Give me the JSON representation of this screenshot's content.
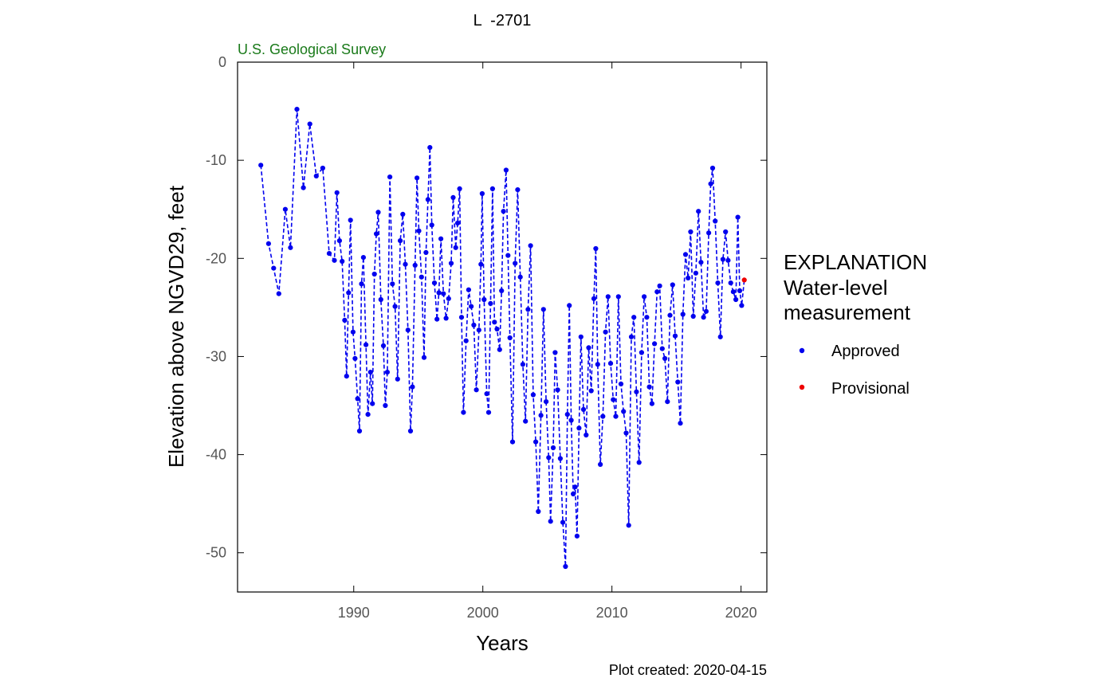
{
  "chart_data": {
    "type": "line",
    "title": "L  -2701",
    "agency": "U.S. Geological Survey",
    "xlabel": "Years",
    "ylabel": "Elevation above NGVD29, feet",
    "footer": "Plot created: 2020-04-15",
    "xlim": [
      1981,
      2022
    ],
    "ylim": [
      -54,
      0
    ],
    "xticks": [
      1990,
      2000,
      2010,
      2020
    ],
    "yticks": [
      0,
      -10,
      -20,
      -30,
      -40,
      -50
    ],
    "grid": false,
    "legend": {
      "placement": "right",
      "heading_lines": [
        "EXPLANATION",
        "Water-level",
        "measurement"
      ],
      "entries": [
        {
          "label": "Approved",
          "color": "#0000ee"
        },
        {
          "label": "Provisional",
          "color": "#ee0000"
        }
      ]
    },
    "series": [
      {
        "name": "Approved",
        "color": "#0000ee",
        "line_style": "dashed",
        "points": [
          [
            1982.8,
            -10.5
          ],
          [
            1983.4,
            -18.5
          ],
          [
            1983.8,
            -21.0
          ],
          [
            1984.2,
            -23.6
          ],
          [
            1984.7,
            -15.0
          ],
          [
            1985.1,
            -18.9
          ],
          [
            1985.6,
            -4.8
          ],
          [
            1986.1,
            -12.8
          ],
          [
            1986.6,
            -6.3
          ],
          [
            1987.1,
            -11.6
          ],
          [
            1987.6,
            -10.8
          ],
          [
            1988.1,
            -19.5
          ],
          [
            1988.5,
            -20.2
          ],
          [
            1988.7,
            -13.3
          ],
          [
            1988.9,
            -18.2
          ],
          [
            1989.1,
            -20.3
          ],
          [
            1989.3,
            -26.3
          ],
          [
            1989.45,
            -32.0
          ],
          [
            1989.6,
            -23.5
          ],
          [
            1989.75,
            -16.1
          ],
          [
            1989.95,
            -27.5
          ],
          [
            1990.1,
            -30.2
          ],
          [
            1990.3,
            -34.3
          ],
          [
            1990.45,
            -37.6
          ],
          [
            1990.6,
            -22.6
          ],
          [
            1990.75,
            -19.9
          ],
          [
            1990.95,
            -28.8
          ],
          [
            1991.1,
            -35.9
          ],
          [
            1991.3,
            -31.6
          ],
          [
            1991.45,
            -34.8
          ],
          [
            1991.6,
            -21.6
          ],
          [
            1991.75,
            -17.5
          ],
          [
            1991.9,
            -15.3
          ],
          [
            1992.1,
            -24.2
          ],
          [
            1992.3,
            -28.9
          ],
          [
            1992.45,
            -35.0
          ],
          [
            1992.6,
            -31.6
          ],
          [
            1992.8,
            -11.7
          ],
          [
            1993.0,
            -22.6
          ],
          [
            1993.2,
            -24.9
          ],
          [
            1993.4,
            -32.3
          ],
          [
            1993.6,
            -18.2
          ],
          [
            1993.8,
            -15.5
          ],
          [
            1994.0,
            -20.6
          ],
          [
            1994.2,
            -27.3
          ],
          [
            1994.4,
            -37.6
          ],
          [
            1994.55,
            -33.1
          ],
          [
            1994.75,
            -20.7
          ],
          [
            1994.9,
            -11.8
          ],
          [
            1995.05,
            -17.2
          ],
          [
            1995.25,
            -21.9
          ],
          [
            1995.45,
            -30.1
          ],
          [
            1995.6,
            -19.4
          ],
          [
            1995.75,
            -14.0
          ],
          [
            1995.9,
            -8.7
          ],
          [
            1996.05,
            -16.6
          ],
          [
            1996.25,
            -22.5
          ],
          [
            1996.45,
            -26.2
          ],
          [
            1996.6,
            -23.5
          ],
          [
            1996.75,
            -18.0
          ],
          [
            1996.95,
            -23.6
          ],
          [
            1997.15,
            -26.1
          ],
          [
            1997.35,
            -24.1
          ],
          [
            1997.55,
            -20.5
          ],
          [
            1997.7,
            -13.8
          ],
          [
            1997.9,
            -18.9
          ],
          [
            1998.05,
            -16.4
          ],
          [
            1998.2,
            -12.9
          ],
          [
            1998.35,
            -26.0
          ],
          [
            1998.5,
            -35.7
          ],
          [
            1998.7,
            -28.4
          ],
          [
            1998.9,
            -23.2
          ],
          [
            1999.1,
            -24.9
          ],
          [
            1999.3,
            -26.8
          ],
          [
            1999.5,
            -33.4
          ],
          [
            1999.7,
            -27.3
          ],
          [
            1999.85,
            -20.6
          ],
          [
            1999.95,
            -13.4
          ],
          [
            2000.1,
            -24.2
          ],
          [
            2000.3,
            -33.8
          ],
          [
            2000.45,
            -35.7
          ],
          [
            2000.6,
            -24.6
          ],
          [
            2000.75,
            -12.9
          ],
          [
            2000.9,
            -26.5
          ],
          [
            2001.1,
            -27.2
          ],
          [
            2001.3,
            -29.3
          ],
          [
            2001.45,
            -23.3
          ],
          [
            2001.6,
            -15.2
          ],
          [
            2001.8,
            -11.0
          ],
          [
            2001.95,
            -19.7
          ],
          [
            2002.1,
            -28.1
          ],
          [
            2002.3,
            -38.7
          ],
          [
            2002.5,
            -20.5
          ],
          [
            2002.7,
            -13.0
          ],
          [
            2002.9,
            -21.9
          ],
          [
            2003.1,
            -30.8
          ],
          [
            2003.3,
            -36.6
          ],
          [
            2003.5,
            -25.2
          ],
          [
            2003.7,
            -18.7
          ],
          [
            2003.9,
            -33.9
          ],
          [
            2004.1,
            -38.7
          ],
          [
            2004.3,
            -45.8
          ],
          [
            2004.5,
            -36.0
          ],
          [
            2004.7,
            -25.2
          ],
          [
            2004.9,
            -34.6
          ],
          [
            2005.1,
            -40.3
          ],
          [
            2005.25,
            -46.8
          ],
          [
            2005.45,
            -39.3
          ],
          [
            2005.6,
            -29.6
          ],
          [
            2005.8,
            -33.4
          ],
          [
            2006.0,
            -40.4
          ],
          [
            2006.2,
            -46.9
          ],
          [
            2006.4,
            -51.4
          ],
          [
            2006.55,
            -35.9
          ],
          [
            2006.7,
            -24.8
          ],
          [
            2006.85,
            -36.5
          ],
          [
            2007.0,
            -44.0
          ],
          [
            2007.15,
            -43.3
          ],
          [
            2007.3,
            -48.3
          ],
          [
            2007.45,
            -37.3
          ],
          [
            2007.6,
            -28.0
          ],
          [
            2007.8,
            -35.4
          ],
          [
            2008.0,
            -38.0
          ],
          [
            2008.2,
            -29.1
          ],
          [
            2008.4,
            -33.5
          ],
          [
            2008.6,
            -24.1
          ],
          [
            2008.75,
            -19.0
          ],
          [
            2008.9,
            -30.8
          ],
          [
            2009.1,
            -41.0
          ],
          [
            2009.3,
            -36.1
          ],
          [
            2009.5,
            -27.5
          ],
          [
            2009.7,
            -23.9
          ],
          [
            2009.9,
            -30.7
          ],
          [
            2010.1,
            -34.4
          ],
          [
            2010.3,
            -36.1
          ],
          [
            2010.5,
            -23.9
          ],
          [
            2010.7,
            -32.8
          ],
          [
            2010.9,
            -35.6
          ],
          [
            2011.1,
            -37.8
          ],
          [
            2011.3,
            -47.2
          ],
          [
            2011.5,
            -28.0
          ],
          [
            2011.7,
            -26.0
          ],
          [
            2011.9,
            -33.6
          ],
          [
            2012.1,
            -40.8
          ],
          [
            2012.3,
            -29.6
          ],
          [
            2012.5,
            -23.9
          ],
          [
            2012.7,
            -26.0
          ],
          [
            2012.9,
            -33.1
          ],
          [
            2013.1,
            -34.8
          ],
          [
            2013.3,
            -28.7
          ],
          [
            2013.5,
            -23.4
          ],
          [
            2013.7,
            -22.8
          ],
          [
            2013.9,
            -29.2
          ],
          [
            2014.1,
            -30.2
          ],
          [
            2014.3,
            -34.6
          ],
          [
            2014.5,
            -25.8
          ],
          [
            2014.7,
            -22.7
          ],
          [
            2014.9,
            -27.9
          ],
          [
            2015.1,
            -32.6
          ],
          [
            2015.3,
            -36.8
          ],
          [
            2015.5,
            -25.7
          ],
          [
            2015.7,
            -19.6
          ],
          [
            2015.9,
            -22.0
          ],
          [
            2016.1,
            -17.3
          ],
          [
            2016.3,
            -25.9
          ],
          [
            2016.5,
            -21.5
          ],
          [
            2016.7,
            -15.2
          ],
          [
            2016.9,
            -20.4
          ],
          [
            2017.1,
            -26.0
          ],
          [
            2017.3,
            -25.4
          ],
          [
            2017.5,
            -17.4
          ],
          [
            2017.65,
            -12.4
          ],
          [
            2017.8,
            -10.8
          ],
          [
            2018.0,
            -16.2
          ],
          [
            2018.2,
            -22.5
          ],
          [
            2018.4,
            -28.0
          ],
          [
            2018.6,
            -20.1
          ],
          [
            2018.8,
            -17.3
          ],
          [
            2019.0,
            -20.2
          ],
          [
            2019.2,
            -22.5
          ],
          [
            2019.4,
            -23.4
          ],
          [
            2019.6,
            -24.2
          ],
          [
            2019.75,
            -15.8
          ],
          [
            2019.9,
            -23.3
          ],
          [
            2020.05,
            -24.8
          ]
        ]
      },
      {
        "name": "Provisional",
        "color": "#ee0000",
        "line_style": "dashed",
        "points": [
          [
            2020.25,
            -22.2
          ]
        ]
      }
    ]
  }
}
